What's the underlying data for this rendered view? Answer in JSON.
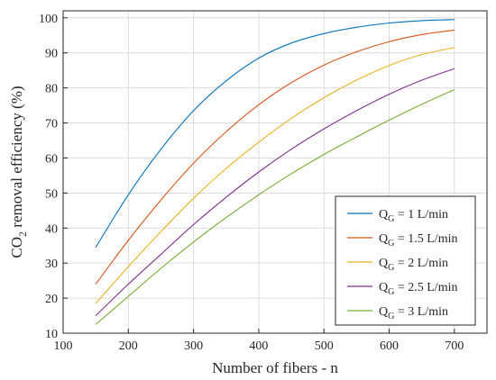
{
  "chart_data": {
    "type": "line",
    "xlabel": "Number of fibers - n",
    "ylabel_main": "CO",
    "ylabel_sub": "2",
    "ylabel_rest": " removal efficiency (%)",
    "xlim": [
      100,
      750
    ],
    "ylim": [
      10,
      102
    ],
    "xticks": [
      100,
      200,
      300,
      400,
      500,
      600,
      700
    ],
    "yticks": [
      10,
      20,
      30,
      40,
      50,
      60,
      70,
      80,
      90,
      100
    ],
    "grid": true,
    "legend_position": "bottom-right",
    "x": [
      150,
      200,
      250,
      300,
      350,
      400,
      450,
      500,
      550,
      600,
      650,
      700
    ],
    "series": [
      {
        "name_prefix": "Q",
        "name_sub": "G",
        "name_suffix": " = 1 L/min",
        "color": "#0072BD",
        "values": [
          34.5,
          49.5,
          62.5,
          73.5,
          82.0,
          88.5,
          92.8,
          95.5,
          97.3,
          98.5,
          99.2,
          99.5
        ]
      },
      {
        "name_prefix": "Q",
        "name_sub": "G",
        "name_suffix": " = 1.5 L/min",
        "color": "#D95319",
        "values": [
          24.0,
          36.5,
          48.0,
          58.5,
          67.5,
          75.2,
          81.5,
          86.5,
          90.3,
          93.2,
          95.2,
          96.5
        ]
      },
      {
        "name_prefix": "Q",
        "name_sub": "G",
        "name_suffix": " = 2 L/min",
        "color": "#EDB120",
        "values": [
          18.5,
          29.0,
          39.0,
          48.5,
          57.0,
          64.5,
          71.3,
          77.2,
          82.2,
          86.4,
          89.5,
          91.5
        ]
      },
      {
        "name_prefix": "Q",
        "name_sub": "G",
        "name_suffix": " = 2.5 L/min",
        "color": "#7E2F8E",
        "values": [
          15.0,
          24.0,
          32.5,
          41.0,
          48.8,
          56.0,
          62.5,
          68.3,
          73.5,
          78.2,
          82.2,
          85.5
        ]
      },
      {
        "name_prefix": "Q",
        "name_sub": "G",
        "name_suffix": " = 3 L/min",
        "color": "#77AC30",
        "values": [
          12.5,
          20.5,
          28.5,
          36.0,
          43.0,
          49.5,
          55.5,
          61.0,
          66.0,
          70.8,
          75.3,
          79.5
        ]
      }
    ]
  }
}
